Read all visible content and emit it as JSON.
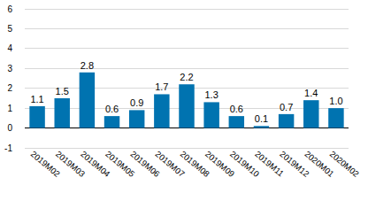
{
  "chart_data": {
    "type": "bar",
    "categories": [
      "2019M02",
      "2019M03",
      "2019M04",
      "2019M05",
      "2019M06",
      "2019M07",
      "2019M08",
      "2019M09",
      "2019M10",
      "2019M11",
      "2019M12",
      "2020M01",
      "2020M02"
    ],
    "values": [
      1.1,
      1.5,
      2.8,
      0.6,
      0.9,
      1.7,
      2.2,
      1.3,
      0.6,
      0.1,
      0.7,
      1.4,
      1.0
    ],
    "value_labels": [
      "1.1",
      "1.5",
      "2.8",
      "0.6",
      "0.9",
      "1.7",
      "2.2",
      "1.3",
      "0.6",
      "0.1",
      "0.7",
      "1.4",
      "1.0"
    ],
    "color": "#0073b0",
    "ylim": [
      -1,
      6
    ],
    "yticks": [
      -1,
      0,
      1,
      2,
      3,
      4,
      5,
      6
    ],
    "grid": true,
    "data_labels": true
  }
}
